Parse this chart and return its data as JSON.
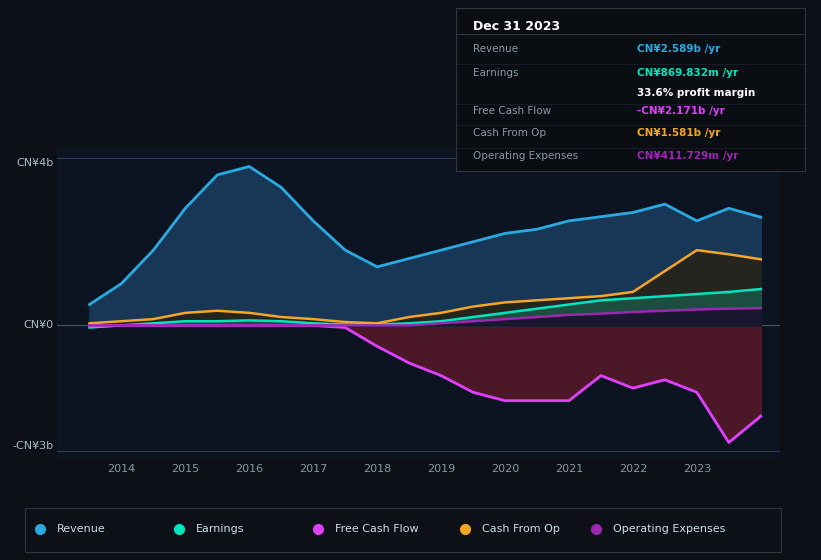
{
  "background_color": "#0d1117",
  "plot_bg_color": "#0d1421",
  "ylabel_top": "CN¥4b",
  "ylabel_zero": "CN¥0",
  "ylabel_bottom": "-CN¥3b",
  "ylim": [
    -3.2,
    4.3
  ],
  "xlim": [
    2013.0,
    2024.3
  ],
  "xticks": [
    2014,
    2015,
    2016,
    2017,
    2018,
    2019,
    2020,
    2021,
    2022,
    2023
  ],
  "years": [
    2013.5,
    2014,
    2014.5,
    2015,
    2015.5,
    2016,
    2016.5,
    2017,
    2017.5,
    2018,
    2018.5,
    2019,
    2019.5,
    2020,
    2020.5,
    2021,
    2021.5,
    2022,
    2022.5,
    2023,
    2023.5,
    2024.0
  ],
  "revenue": [
    0.5,
    1.0,
    1.8,
    2.8,
    3.6,
    3.8,
    3.3,
    2.5,
    1.8,
    1.4,
    1.6,
    1.8,
    2.0,
    2.2,
    2.3,
    2.5,
    2.6,
    2.7,
    2.9,
    2.5,
    2.8,
    2.589
  ],
  "earnings": [
    -0.05,
    0.0,
    0.05,
    0.1,
    0.1,
    0.12,
    0.1,
    0.05,
    0.02,
    0.02,
    0.05,
    0.1,
    0.2,
    0.3,
    0.4,
    0.5,
    0.6,
    0.65,
    0.7,
    0.75,
    0.8,
    0.87
  ],
  "free_cash_flow": [
    0.0,
    0.0,
    0.0,
    0.0,
    0.0,
    0.0,
    0.0,
    0.0,
    -0.05,
    -0.5,
    -0.9,
    -1.2,
    -1.6,
    -1.8,
    -1.8,
    -1.8,
    -1.2,
    -1.5,
    -1.3,
    -1.6,
    -2.8,
    -2.171
  ],
  "cash_from_op": [
    0.05,
    0.1,
    0.15,
    0.3,
    0.35,
    0.3,
    0.2,
    0.15,
    0.08,
    0.05,
    0.2,
    0.3,
    0.45,
    0.55,
    0.6,
    0.65,
    0.7,
    0.8,
    1.3,
    1.8,
    1.7,
    1.581
  ],
  "op_expenses": [
    0.0,
    0.0,
    0.0,
    0.0,
    0.0,
    0.0,
    0.0,
    0.0,
    0.0,
    0.0,
    0.0,
    0.05,
    0.1,
    0.15,
    0.2,
    0.25,
    0.28,
    0.32,
    0.35,
    0.38,
    0.4,
    0.412
  ],
  "revenue_color": "#29aae1",
  "earnings_color": "#00e5c0",
  "fcf_color": "#e040fb",
  "cashop_color": "#f5a623",
  "opex_color": "#9c27b0",
  "revenue_fill": "#1a3a5c",
  "earnings_fill": "#1a5c4a",
  "fcf_fill": "#5c1a2a",
  "info_box": {
    "title": "Dec 31 2023",
    "revenue_label": "Revenue",
    "revenue_value": "CN¥2.589b /yr",
    "revenue_color": "#29aae1",
    "earnings_label": "Earnings",
    "earnings_value": "CN¥869.832m /yr",
    "earnings_color": "#00e5c0",
    "margin_text": "33.6% profit margin",
    "fcf_label": "Free Cash Flow",
    "fcf_value": "-CN¥2.171b /yr",
    "fcf_color": "#e040fb",
    "cashop_label": "Cash From Op",
    "cashop_value": "CN¥1.581b /yr",
    "cashop_color": "#f5a623",
    "opex_label": "Operating Expenses",
    "opex_value": "CN¥411.729m /yr",
    "opex_color": "#9c27b0"
  },
  "legend_items": [
    {
      "label": "Revenue",
      "color": "#29aae1"
    },
    {
      "label": "Earnings",
      "color": "#00e5c0"
    },
    {
      "label": "Free Cash Flow",
      "color": "#e040fb"
    },
    {
      "label": "Cash From Op",
      "color": "#f5a623"
    },
    {
      "label": "Operating Expenses",
      "color": "#9c27b0"
    }
  ]
}
